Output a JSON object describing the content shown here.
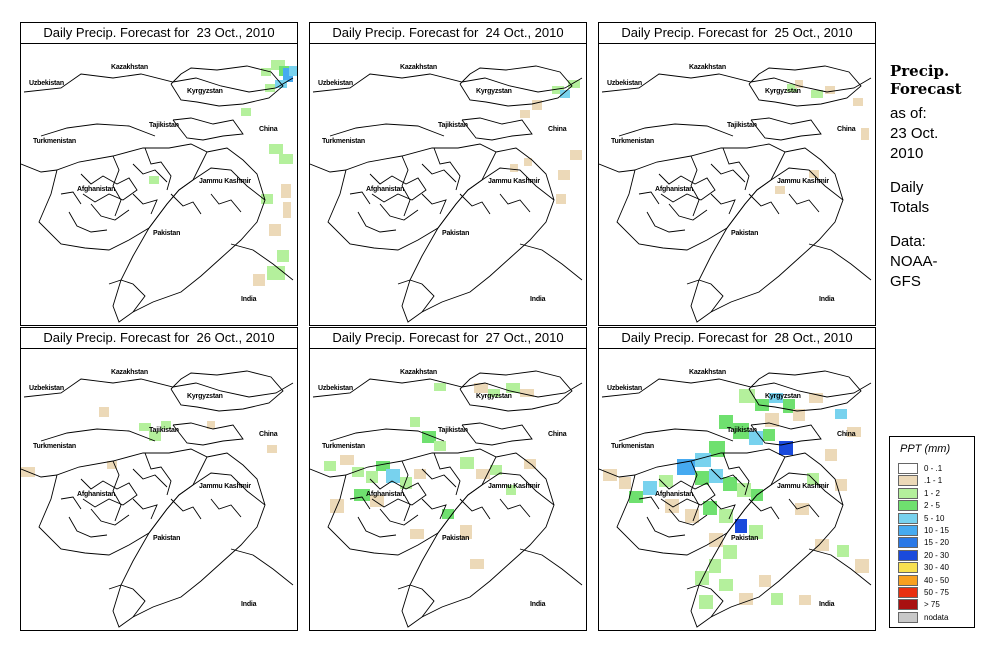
{
  "panels": [
    {
      "title": "Daily Precip. Forecast for  23 Oct., 2010"
    },
    {
      "title": "Daily Precip. Forecast for  24 Oct., 2010"
    },
    {
      "title": "Daily Precip. Forecast for  25 Oct., 2010"
    },
    {
      "title": "Daily Precip. Forecast for  26 Oct., 2010"
    },
    {
      "title": "Daily Precip. Forecast for  27 Oct., 2010"
    },
    {
      "title": "Daily Precip. Forecast for  28 Oct., 2010"
    }
  ],
  "map_labels": {
    "kazakhstan": "Kazakhstan",
    "uzbekistan": "Uzbekistan",
    "kyrgyzstan": "Kyrgyzstan",
    "tajikistan": "Tajikistan",
    "turkmenistan": "Turkmenistan",
    "china": "China",
    "afghanistan": "Afghanistan",
    "jammu_kashmir": "Jammu Kashmir",
    "pakistan": "Pakistan",
    "india": "India"
  },
  "side": {
    "title_line1": "Precip.",
    "title_line2": "Forecast",
    "asof_line1": "as of:",
    "asof_line2": "23 Oct.",
    "asof_line3": "2010",
    "daily_line1": "Daily",
    "daily_line2": "Totals",
    "data_line1": "Data:",
    "data_line2": "NOAA-",
    "data_line3": "GFS"
  },
  "legend": {
    "title": "PPT (mm)",
    "items": [
      {
        "label": "0 - .1",
        "color": "#ffffff"
      },
      {
        "label": ".1 - 1",
        "color": "#ecd9b8"
      },
      {
        "label": "1 - 2",
        "color": "#b4f09c"
      },
      {
        "label": "2 - 5",
        "color": "#6fe06f"
      },
      {
        "label": "5 - 10",
        "color": "#78d2ee"
      },
      {
        "label": "10 - 15",
        "color": "#46aaf0"
      },
      {
        "label": "15 - 20",
        "color": "#2a78e6"
      },
      {
        "label": "20 - 30",
        "color": "#1a4adc"
      },
      {
        "label": "30 - 40",
        "color": "#f8e050"
      },
      {
        "label": "40 - 50",
        "color": "#f8a020"
      },
      {
        "label": "50 - 75",
        "color": "#e83010"
      },
      {
        "label": "> 75",
        "color": "#a81010"
      },
      {
        "label": "nodata",
        "color": "#c8c8c8"
      }
    ]
  }
}
